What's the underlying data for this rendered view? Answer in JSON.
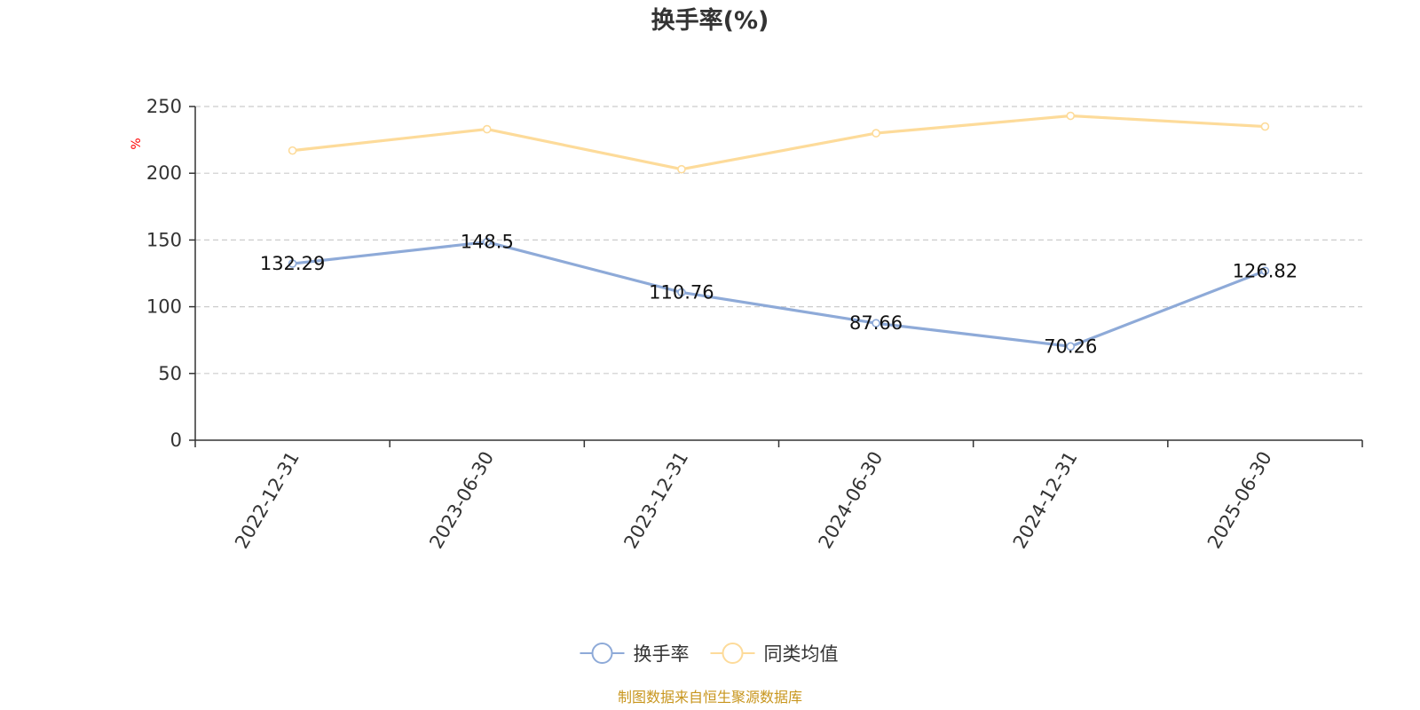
{
  "chart_data": {
    "type": "line",
    "title": "换手率(%)",
    "ylabel": "%",
    "ylim": [
      0,
      250
    ],
    "yticks": [
      0,
      50,
      100,
      150,
      200,
      250
    ],
    "grid": true,
    "legend_position": "bottom-center",
    "categories": [
      "2022-12-31",
      "2023-06-30",
      "2023-12-31",
      "2024-06-30",
      "2024-12-31",
      "2025-06-30"
    ],
    "series": [
      {
        "name": "换手率",
        "color": "#8eaad8",
        "values": [
          132.29,
          148.5,
          110.76,
          87.66,
          70.26,
          126.82
        ],
        "labels": [
          "132.29",
          "148.5",
          "110.76",
          "87.66",
          "70.26",
          "126.82"
        ],
        "show_labels": true
      },
      {
        "name": "同类均值",
        "color": "#fddb9a",
        "values": [
          217,
          233,
          203,
          230,
          243,
          235
        ],
        "show_labels": false
      }
    ],
    "source": "制图数据来自恒生聚源数据库",
    "colors": {
      "axis": "#333333",
      "grid": "#cccccc",
      "ylabel": "#ff0000",
      "source": "#c8961e"
    }
  }
}
